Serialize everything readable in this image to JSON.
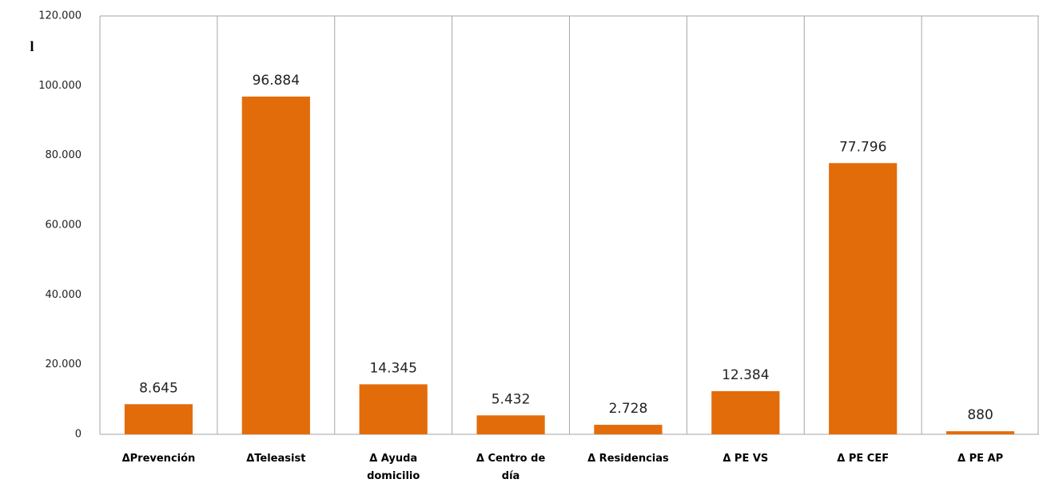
{
  "chart_data": {
    "type": "bar",
    "ylabel": "l",
    "categories": [
      "ΔPrevención",
      "ΔTeleasist",
      "Δ Ayuda domicilio",
      "Δ Centro de día",
      "Δ Residencias",
      "Δ PE VS",
      "Δ PE CEF",
      "Δ PE AP"
    ],
    "values": [
      8645,
      96884,
      14345,
      5432,
      2728,
      12384,
      77796,
      880
    ],
    "value_labels": [
      "8.645",
      "96.884",
      "14.345",
      "5.432",
      "2.728",
      "12.384",
      "77.796",
      "880"
    ],
    "color": "#e36c0a",
    "ylim": [
      0,
      120000
    ],
    "yticks": [
      0,
      {
        "value": 20000,
        "label": "20.000"
      },
      {
        "value": 40000,
        "label": "40.000"
      },
      {
        "value": 60000,
        "label": "60.000"
      },
      {
        "value": 80000,
        "label": "80.000"
      },
      {
        "value": 100000,
        "label": "100.000"
      },
      {
        "value": 120000,
        "label": "120.000"
      }
    ]
  }
}
